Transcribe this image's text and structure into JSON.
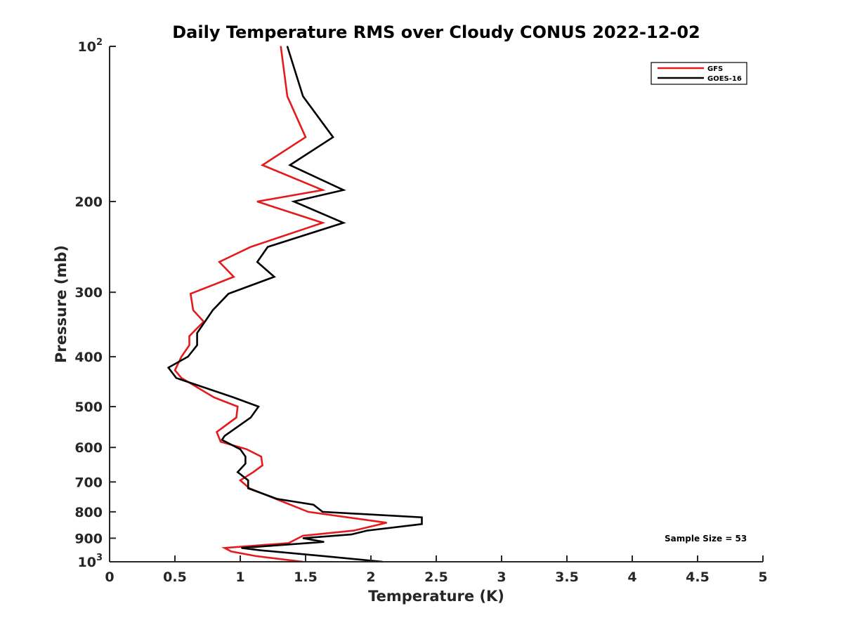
{
  "chart_data": {
    "type": "line",
    "title": "Daily Temperature RMS over Cloudy CONUS 2022-12-02",
    "xlabel": "Temperature (K)",
    "ylabel": "Pressure (mb)",
    "xlim": [
      0,
      5
    ],
    "ylim": [
      1000,
      100
    ],
    "y_scale": "log",
    "y_reversed": true,
    "grid": false,
    "legend_position": "top-right",
    "annotation": "Sample Size = 53",
    "x_ticks": [
      "0",
      "0.5",
      "1",
      "1.5",
      "2",
      "2.5",
      "3",
      "3.5",
      "4",
      "4.5",
      "5"
    ],
    "y_ticks": [
      {
        "value": 100,
        "base": "10",
        "exp": "2",
        "label": ""
      },
      {
        "value": 200,
        "base": "",
        "exp": "",
        "label": "200"
      },
      {
        "value": 300,
        "base": "",
        "exp": "",
        "label": "300"
      },
      {
        "value": 400,
        "base": "",
        "exp": "",
        "label": "400"
      },
      {
        "value": 500,
        "base": "",
        "exp": "",
        "label": "500"
      },
      {
        "value": 600,
        "base": "",
        "exp": "",
        "label": "600"
      },
      {
        "value": 700,
        "base": "",
        "exp": "",
        "label": "700"
      },
      {
        "value": 800,
        "base": "",
        "exp": "",
        "label": "800"
      },
      {
        "value": 900,
        "base": "",
        "exp": "",
        "label": "900"
      },
      {
        "value": 1000,
        "base": "10",
        "exp": "3",
        "label": ""
      }
    ],
    "series": [
      {
        "name": "GFS",
        "color": "#e41a1c",
        "points": [
          [
            1.31,
            100
          ],
          [
            1.36,
            125
          ],
          [
            1.5,
            150
          ],
          [
            1.17,
            170
          ],
          [
            1.63,
            190
          ],
          [
            1.13,
            200
          ],
          [
            1.63,
            220
          ],
          [
            1.08,
            245
          ],
          [
            0.84,
            262
          ],
          [
            0.95,
            280
          ],
          [
            0.62,
            302
          ],
          [
            0.64,
            325
          ],
          [
            0.72,
            342
          ],
          [
            0.61,
            365
          ],
          [
            0.61,
            380
          ],
          [
            0.55,
            400
          ],
          [
            0.5,
            425
          ],
          [
            0.55,
            440
          ],
          [
            0.8,
            480
          ],
          [
            0.98,
            500
          ],
          [
            0.97,
            525
          ],
          [
            0.82,
            560
          ],
          [
            0.85,
            585
          ],
          [
            1.05,
            605
          ],
          [
            1.16,
            625
          ],
          [
            1.17,
            650
          ],
          [
            1.1,
            670
          ],
          [
            1.0,
            695
          ],
          [
            1.07,
            720
          ],
          [
            1.3,
            760
          ],
          [
            1.52,
            800
          ],
          [
            2.12,
            840
          ],
          [
            1.87,
            870
          ],
          [
            1.48,
            890
          ],
          [
            1.37,
            920
          ],
          [
            0.88,
            940
          ],
          [
            0.93,
            955
          ],
          [
            1.12,
            975
          ],
          [
            1.48,
            1000
          ]
        ]
      },
      {
        "name": "GOES-16",
        "color": "#000000",
        "points": [
          [
            1.36,
            100
          ],
          [
            1.48,
            125
          ],
          [
            1.71,
            150
          ],
          [
            1.38,
            170
          ],
          [
            1.79,
            190
          ],
          [
            1.41,
            200
          ],
          [
            1.79,
            220
          ],
          [
            1.21,
            245
          ],
          [
            1.13,
            262
          ],
          [
            1.26,
            280
          ],
          [
            0.91,
            302
          ],
          [
            0.79,
            325
          ],
          [
            0.67,
            360
          ],
          [
            0.67,
            380
          ],
          [
            0.6,
            400
          ],
          [
            0.45,
            420
          ],
          [
            0.51,
            440
          ],
          [
            0.95,
            480
          ],
          [
            1.14,
            500
          ],
          [
            1.08,
            525
          ],
          [
            0.88,
            570
          ],
          [
            0.86,
            580
          ],
          [
            1.0,
            605
          ],
          [
            1.04,
            625
          ],
          [
            1.04,
            645
          ],
          [
            0.98,
            670
          ],
          [
            1.06,
            695
          ],
          [
            1.06,
            720
          ],
          [
            1.28,
            755
          ],
          [
            1.56,
            775
          ],
          [
            1.63,
            800
          ],
          [
            2.39,
            820
          ],
          [
            2.39,
            845
          ],
          [
            1.97,
            870
          ],
          [
            1.85,
            885
          ],
          [
            1.48,
            900
          ],
          [
            1.64,
            915
          ],
          [
            1.01,
            940
          ],
          [
            1.15,
            950
          ],
          [
            1.64,
            975
          ],
          [
            2.09,
            1000
          ]
        ]
      }
    ]
  }
}
